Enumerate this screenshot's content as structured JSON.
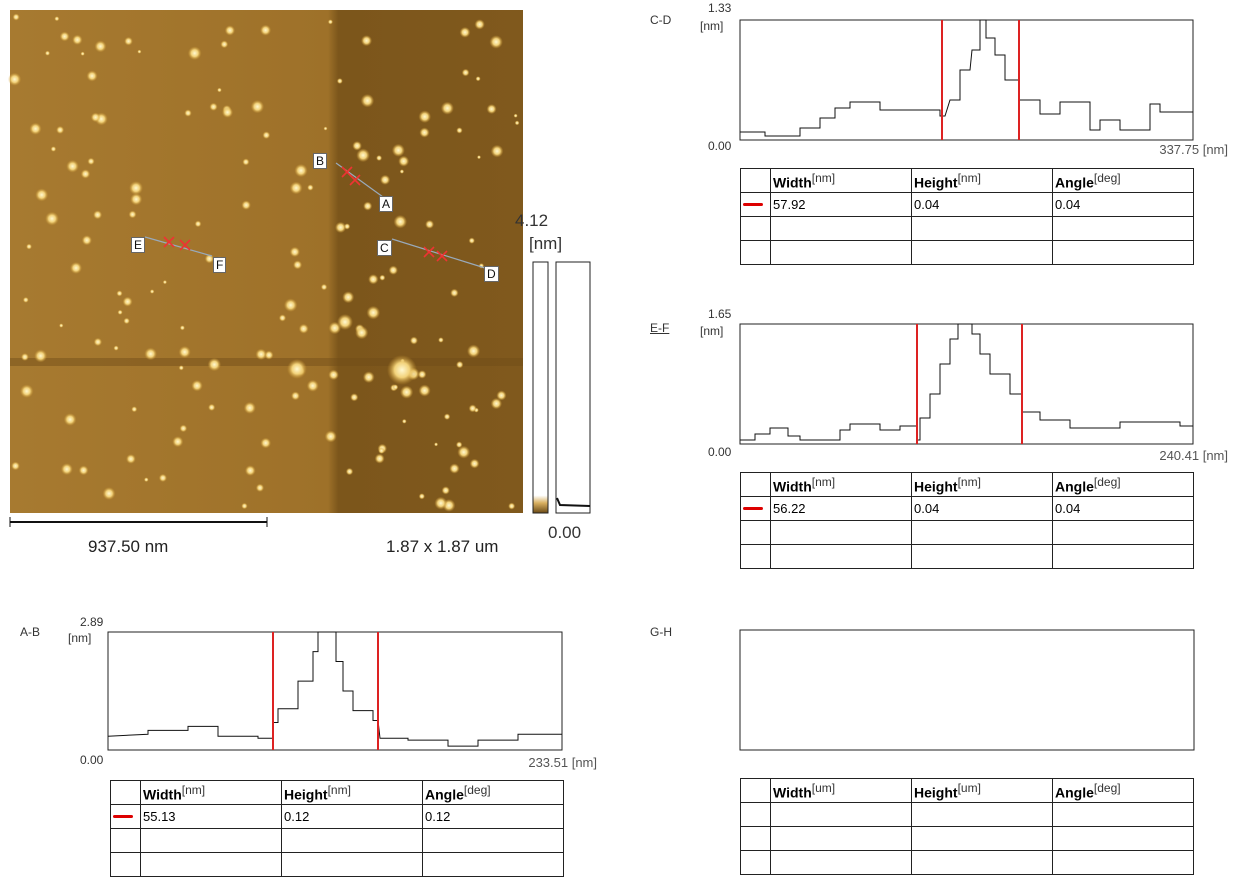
{
  "image": {
    "scale_bar": "937.50 nm",
    "size": "1.87 x 1.87 um",
    "color_max": "4.12",
    "color_unit": "[nm]",
    "color_min": "0.00",
    "markers": [
      "A",
      "B",
      "C",
      "D",
      "E",
      "F"
    ]
  },
  "profiles": [
    {
      "label": "A-B",
      "ymax": "2.89",
      "yunit": "[nm]",
      "ymin": "0.00",
      "xmax": "233.51 [nm]",
      "headers": [
        {
          "name": "Width",
          "unit": "[nm]"
        },
        {
          "name": "Height",
          "unit": "[nm]"
        },
        {
          "name": "Angle",
          "unit": "[deg]"
        }
      ],
      "rows": [
        [
          "55.13",
          "0.12",
          "0.12"
        ]
      ]
    },
    {
      "label": "C-D",
      "ymax": "1.33",
      "yunit": "[nm]",
      "ymin": "0.00",
      "xmax": "337.75 [nm]",
      "headers": [
        {
          "name": "Width",
          "unit": "[nm]"
        },
        {
          "name": "Height",
          "unit": "[nm]"
        },
        {
          "name": "Angle",
          "unit": "[deg]"
        }
      ],
      "rows": [
        [
          "57.92",
          "0.04",
          "0.04"
        ]
      ]
    },
    {
      "label": "E-F",
      "ymax": "1.65",
      "yunit": "[nm]",
      "ymin": "0.00",
      "xmax": "240.41 [nm]",
      "headers": [
        {
          "name": "Width",
          "unit": "[nm]"
        },
        {
          "name": "Height",
          "unit": "[nm]"
        },
        {
          "name": "Angle",
          "unit": "[deg]"
        }
      ],
      "rows": [
        [
          "56.22",
          "0.04",
          "0.04"
        ]
      ]
    },
    {
      "label": "G-H",
      "headers": [
        {
          "name": "Width",
          "unit": "[um]"
        },
        {
          "name": "Height",
          "unit": "[um]"
        },
        {
          "name": "Angle",
          "unit": "[deg]"
        }
      ]
    }
  ]
}
